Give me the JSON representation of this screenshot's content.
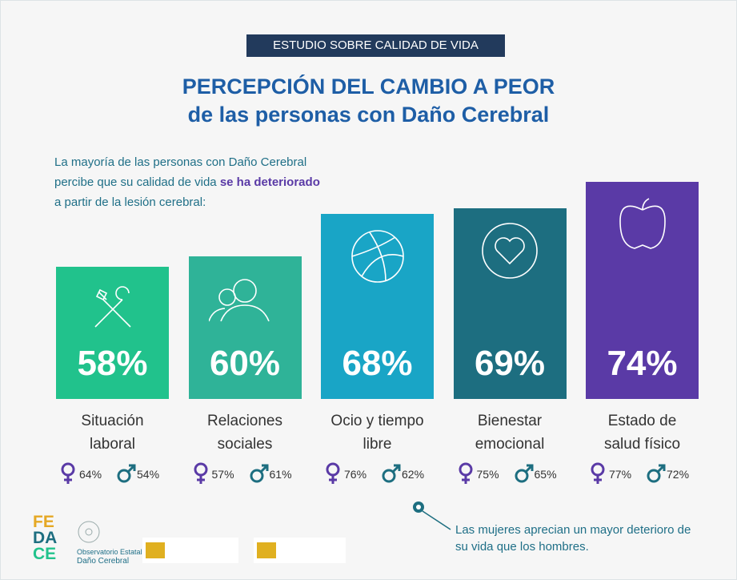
{
  "header": {
    "badge": "ESTUDIO SOBRE CALIDAD DE VIDA",
    "title": [
      "PERCEPCIÓN DEL CAMBIO A PEOR",
      "de las personas con Daño Cerebral"
    ]
  },
  "intro": {
    "lines": [
      "La mayoría de las personas con Daño Cerebral",
      "percibe que su calidad de vida ",
      "a partir de la lesión cerebral:"
    ],
    "highlight": "se ha deteriorado"
  },
  "chart_data": {
    "type": "bar",
    "categories": [
      "Situación laboral",
      "Relaciones sociales",
      "Ocio y tiempo libre",
      "Bienestar emocional",
      "Estado de salud físico"
    ],
    "values": [
      58,
      60,
      68,
      69,
      74
    ],
    "value_labels": [
      "58%",
      "60%",
      "68%",
      "69%",
      "74%"
    ],
    "colors": [
      "#21c28c",
      "#2fb398",
      "#19a5c6",
      "#1d6e80",
      "#5a3aa6"
    ],
    "ylim": [
      33,
      74
    ],
    "gender": {
      "female": {
        "color": "#5a3aa6",
        "values": [
          64,
          57,
          76,
          75,
          77
        ],
        "value_labels": [
          "64%",
          "57%",
          "76%",
          "75%",
          "77%"
        ]
      },
      "male": {
        "color": "#1d6e80",
        "values": [
          54,
          61,
          62,
          65,
          72
        ],
        "value_labels": [
          "54%",
          "61%",
          "62%",
          "65%",
          "72%"
        ]
      }
    }
  },
  "note": "Las mujeres aprecian un mayor deterioro de su vida que los hombres.",
  "footer": {
    "logo": [
      "FE",
      "DA",
      "CE"
    ],
    "observatorio": [
      "Observatorio Estatal",
      "Daño Cerebral"
    ]
  }
}
